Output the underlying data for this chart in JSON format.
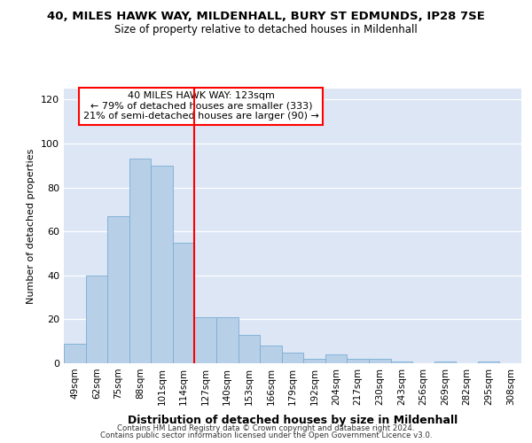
{
  "title": "40, MILES HAWK WAY, MILDENHALL, BURY ST EDMUNDS, IP28 7SE",
  "subtitle": "Size of property relative to detached houses in Mildenhall",
  "xlabel": "Distribution of detached houses by size in Mildenhall",
  "ylabel": "Number of detached properties",
  "categories": [
    "49sqm",
    "62sqm",
    "75sqm",
    "88sqm",
    "101sqm",
    "114sqm",
    "127sqm",
    "140sqm",
    "153sqm",
    "166sqm",
    "179sqm",
    "192sqm",
    "204sqm",
    "217sqm",
    "230sqm",
    "243sqm",
    "256sqm",
    "269sqm",
    "282sqm",
    "295sqm",
    "308sqm"
  ],
  "values": [
    9,
    40,
    67,
    93,
    90,
    55,
    21,
    21,
    13,
    8,
    5,
    2,
    4,
    2,
    2,
    1,
    0,
    1,
    0,
    1,
    0
  ],
  "bar_color": "#b8cfe8",
  "bar_edge_color": "#7aadd4",
  "vline_x": 6.0,
  "vline_color": "red",
  "annotation_text": "40 MILES HAWK WAY: 123sqm\n← 79% of detached houses are smaller (333)\n21% of semi-detached houses are larger (90) →",
  "annotation_box_color": "#ffffff",
  "annotation_box_edge": "red",
  "ylim": [
    0,
    125
  ],
  "yticks": [
    0,
    20,
    40,
    60,
    80,
    100,
    120
  ],
  "bg_color": "#dce6f5",
  "footer1": "Contains HM Land Registry data © Crown copyright and database right 2024.",
  "footer2": "Contains public sector information licensed under the Open Government Licence v3.0."
}
